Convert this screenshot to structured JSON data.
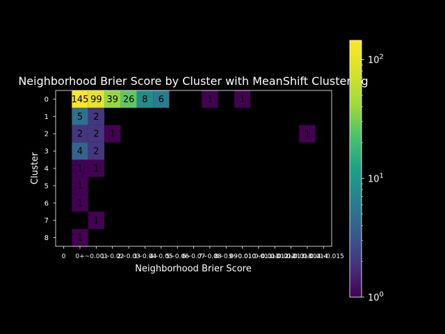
{
  "chart_data": {
    "type": "heatmap",
    "title": "Neighborhood Brier Score by Cluster with MeanShift Clustering",
    "xlabel": "Neighborhood Brier Score",
    "ylabel": "Cluster",
    "x_tick_labels": [
      "0",
      "0+",
      "~0.001",
      "1~0.02",
      "2~0.03",
      "3~0.04",
      "4~0.05",
      "5~0.06",
      "6~0.07",
      "7~0.08",
      "8~0.09",
      "9~0.010",
      "0.010~0.011",
      "0.011~0.012",
      "0.012~0.013",
      "0.013~0.014",
      "0.014~0.015"
    ],
    "y_tick_labels": [
      "0",
      "1",
      "2",
      "3",
      "4",
      "5",
      "6",
      "7",
      "8"
    ],
    "cells": [
      {
        "row": 0,
        "col": 1,
        "value": 145
      },
      {
        "row": 0,
        "col": 2,
        "value": 99
      },
      {
        "row": 0,
        "col": 3,
        "value": 39
      },
      {
        "row": 0,
        "col": 4,
        "value": 26
      },
      {
        "row": 0,
        "col": 5,
        "value": 8
      },
      {
        "row": 0,
        "col": 6,
        "value": 6
      },
      {
        "row": 0,
        "col": 9,
        "value": 1
      },
      {
        "row": 0,
        "col": 11,
        "value": 1
      },
      {
        "row": 1,
        "col": 1,
        "value": 5
      },
      {
        "row": 1,
        "col": 2,
        "value": 2
      },
      {
        "row": 2,
        "col": 1,
        "value": 2
      },
      {
        "row": 2,
        "col": 2,
        "value": 2
      },
      {
        "row": 2,
        "col": 3,
        "value": 1
      },
      {
        "row": 2,
        "col": 15,
        "value": 1
      },
      {
        "row": 3,
        "col": 1,
        "value": 4
      },
      {
        "row": 3,
        "col": 2,
        "value": 2
      },
      {
        "row": 4,
        "col": 1,
        "value": 1
      },
      {
        "row": 4,
        "col": 2,
        "value": 1
      },
      {
        "row": 5,
        "col": 1,
        "value": 1
      },
      {
        "row": 6,
        "col": 1,
        "value": 1
      },
      {
        "row": 7,
        "col": 2,
        "value": 1
      },
      {
        "row": 8,
        "col": 1,
        "value": 1
      }
    ],
    "colorbar": {
      "scale": "log",
      "range": [
        1,
        145
      ],
      "colormap": "viridis",
      "tick_labels": [
        {
          "value": 1,
          "base": "10",
          "exp": "0"
        },
        {
          "value": 10,
          "base": "10",
          "exp": "1"
        },
        {
          "value": 100,
          "base": "10",
          "exp": "2"
        }
      ]
    },
    "background_color": "#000000",
    "foreground_color": "#ffffff"
  }
}
